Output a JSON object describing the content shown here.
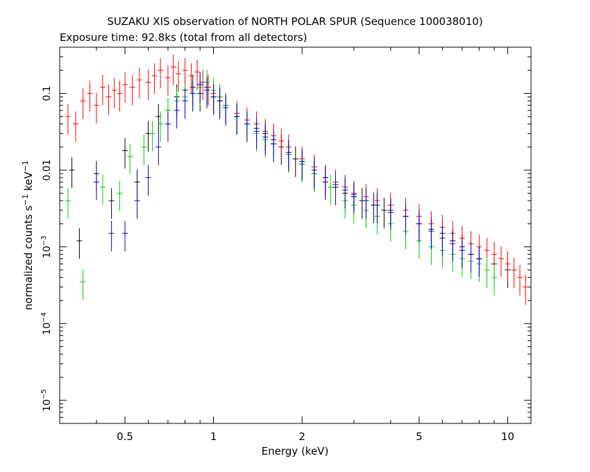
{
  "chart_data": {
    "type": "scatter",
    "title": "SUZAKU XIS observation of NORTH POLAR SPUR (Sequence 100038010)",
    "subtitle": "Exposure time: 92.8ks (total from all detectors)",
    "xlabel": "Energy (keV)",
    "ylabel_main": "normalized counts s",
    "ylabel_sup1": "−1",
    "ylabel_mid": " keV",
    "ylabel_sup2": "−1",
    "x_scale": "log",
    "y_scale": "log",
    "xlim": [
      0.3,
      12
    ],
    "ylim": [
      5e-06,
      0.4
    ],
    "x_ticks": [
      {
        "value": 0.5,
        "label": "0.5"
      },
      {
        "value": 1,
        "label": "1"
      },
      {
        "value": 2,
        "label": "2"
      },
      {
        "value": 5,
        "label": "5"
      },
      {
        "value": 10,
        "label": "10"
      }
    ],
    "y_ticks": [
      {
        "value": 0.1,
        "label": "0.1",
        "exp": ""
      },
      {
        "value": 0.01,
        "label": "0.01",
        "exp": ""
      },
      {
        "value": 0.001,
        "label": "10",
        "exp": "−3"
      },
      {
        "value": 0.0001,
        "label": "10",
        "exp": "−4"
      },
      {
        "value": 1e-05,
        "label": "10",
        "exp": "−5"
      }
    ],
    "grid": false,
    "legend": "none",
    "series": [
      {
        "color": "#000000",
        "points": [
          [
            0.33,
            0.01
          ],
          [
            0.35,
            0.0012
          ],
          [
            0.4,
            0.009
          ],
          [
            0.45,
            0.004
          ],
          [
            0.5,
            0.018
          ],
          [
            0.55,
            0.007
          ],
          [
            0.6,
            0.03
          ],
          [
            0.65,
            0.05
          ],
          [
            0.7,
            0.06
          ],
          [
            0.75,
            0.09
          ],
          [
            0.8,
            0.11
          ],
          [
            0.85,
            0.12
          ],
          [
            0.9,
            0.1
          ],
          [
            0.95,
            0.12
          ],
          [
            1.0,
            0.09
          ],
          [
            1.05,
            0.08
          ],
          [
            1.1,
            0.07
          ],
          [
            1.2,
            0.05
          ],
          [
            1.3,
            0.04
          ],
          [
            1.4,
            0.035
          ],
          [
            1.5,
            0.03
          ],
          [
            1.6,
            0.025
          ],
          [
            1.7,
            0.02
          ],
          [
            1.8,
            0.016
          ],
          [
            1.9,
            0.014
          ],
          [
            2.0,
            0.012
          ],
          [
            2.2,
            0.009
          ],
          [
            2.4,
            0.007
          ],
          [
            2.6,
            0.006
          ],
          [
            2.8,
            0.005
          ],
          [
            3.0,
            0.0045
          ],
          [
            3.2,
            0.004
          ],
          [
            3.5,
            0.0035
          ],
          [
            3.8,
            0.003
          ],
          [
            4.0,
            0.0028
          ],
          [
            4.5,
            0.0025
          ],
          [
            5.0,
            0.002
          ],
          [
            5.5,
            0.0017
          ],
          [
            6.0,
            0.0015
          ],
          [
            6.5,
            0.0012
          ],
          [
            7.0,
            0.001
          ],
          [
            7.5,
            0.0008
          ],
          [
            8.0,
            0.0007
          ],
          [
            9.0,
            0.0006
          ],
          [
            10.0,
            0.0005
          ]
        ]
      },
      {
        "color": "#ff0000",
        "points": [
          [
            0.32,
            0.05
          ],
          [
            0.34,
            0.04
          ],
          [
            0.36,
            0.08
          ],
          [
            0.38,
            0.1
          ],
          [
            0.4,
            0.07
          ],
          [
            0.42,
            0.12
          ],
          [
            0.44,
            0.09
          ],
          [
            0.46,
            0.11
          ],
          [
            0.48,
            0.1
          ],
          [
            0.5,
            0.13
          ],
          [
            0.53,
            0.12
          ],
          [
            0.56,
            0.15
          ],
          [
            0.6,
            0.14
          ],
          [
            0.63,
            0.17
          ],
          [
            0.66,
            0.2
          ],
          [
            0.7,
            0.16
          ],
          [
            0.73,
            0.22
          ],
          [
            0.76,
            0.18
          ],
          [
            0.8,
            0.2
          ],
          [
            0.84,
            0.17
          ],
          [
            0.88,
            0.19
          ],
          [
            0.92,
            0.14
          ],
          [
            0.96,
            0.12
          ],
          [
            1.0,
            0.1
          ],
          [
            1.05,
            0.09
          ],
          [
            1.1,
            0.07
          ],
          [
            1.2,
            0.055
          ],
          [
            1.3,
            0.045
          ],
          [
            1.4,
            0.04
          ],
          [
            1.5,
            0.032
          ],
          [
            1.6,
            0.028
          ],
          [
            1.7,
            0.024
          ],
          [
            1.8,
            0.02
          ],
          [
            2.0,
            0.014
          ],
          [
            2.2,
            0.011
          ],
          [
            2.4,
            0.008
          ],
          [
            2.6,
            0.007
          ],
          [
            2.8,
            0.006
          ],
          [
            3.0,
            0.005
          ],
          [
            3.3,
            0.0045
          ],
          [
            3.6,
            0.004
          ],
          [
            4.0,
            0.0035
          ],
          [
            4.5,
            0.003
          ],
          [
            5.0,
            0.0025
          ],
          [
            5.5,
            0.002
          ],
          [
            6.0,
            0.0018
          ],
          [
            6.5,
            0.0015
          ],
          [
            7.0,
            0.0013
          ],
          [
            7.5,
            0.0011
          ],
          [
            8.0,
            0.001
          ],
          [
            8.5,
            0.0009
          ],
          [
            9.0,
            0.0008
          ],
          [
            9.5,
            0.0007
          ],
          [
            10.0,
            0.0006
          ],
          [
            10.5,
            0.0005
          ],
          [
            11.0,
            0.0004
          ],
          [
            11.5,
            0.0003
          ]
        ]
      },
      {
        "color": "#00cc00",
        "points": [
          [
            0.32,
            0.004
          ],
          [
            0.36,
            0.00035
          ],
          [
            0.42,
            0.006
          ],
          [
            0.48,
            0.005
          ],
          [
            0.52,
            0.015
          ],
          [
            0.58,
            0.02
          ],
          [
            0.62,
            0.03
          ],
          [
            0.66,
            0.04
          ],
          [
            0.7,
            0.06
          ],
          [
            0.75,
            0.08
          ],
          [
            0.8,
            0.09
          ],
          [
            0.85,
            0.1
          ],
          [
            0.9,
            0.12
          ],
          [
            0.95,
            0.14
          ],
          [
            1.0,
            0.11
          ],
          [
            1.05,
            0.09
          ],
          [
            1.1,
            0.07
          ],
          [
            1.2,
            0.05
          ],
          [
            1.3,
            0.04
          ],
          [
            1.4,
            0.03
          ],
          [
            1.5,
            0.025
          ],
          [
            1.6,
            0.022
          ],
          [
            1.8,
            0.016
          ],
          [
            2.0,
            0.012
          ],
          [
            2.2,
            0.009
          ],
          [
            2.5,
            0.006
          ],
          [
            2.8,
            0.004
          ],
          [
            3.0,
            0.0035
          ],
          [
            3.3,
            0.003
          ],
          [
            3.6,
            0.0025
          ],
          [
            4.0,
            0.002
          ],
          [
            4.5,
            0.0016
          ],
          [
            5.0,
            0.0012
          ],
          [
            5.5,
            0.001
          ],
          [
            6.0,
            0.0009
          ],
          [
            6.5,
            0.0008
          ],
          [
            7.0,
            0.0007
          ],
          [
            7.5,
            0.00065
          ],
          [
            8.0,
            0.0006
          ],
          [
            8.5,
            0.0005
          ],
          [
            9.0,
            0.0004
          ]
        ]
      },
      {
        "color": "#0000cc",
        "points": [
          [
            0.4,
            0.007
          ],
          [
            0.45,
            0.0015
          ],
          [
            0.5,
            0.0015
          ],
          [
            0.55,
            0.004
          ],
          [
            0.6,
            0.008
          ],
          [
            0.65,
            0.02
          ],
          [
            0.7,
            0.04
          ],
          [
            0.75,
            0.06
          ],
          [
            0.8,
            0.08
          ],
          [
            0.85,
            0.1
          ],
          [
            0.9,
            0.13
          ],
          [
            0.95,
            0.11
          ],
          [
            1.0,
            0.09
          ],
          [
            1.05,
            0.08
          ],
          [
            1.1,
            0.065
          ],
          [
            1.2,
            0.05
          ],
          [
            1.3,
            0.04
          ],
          [
            1.4,
            0.032
          ],
          [
            1.5,
            0.027
          ],
          [
            1.6,
            0.022
          ],
          [
            1.8,
            0.017
          ],
          [
            2.0,
            0.013
          ],
          [
            2.2,
            0.01
          ],
          [
            2.4,
            0.008
          ],
          [
            2.6,
            0.0065
          ],
          [
            2.8,
            0.0055
          ],
          [
            3.0,
            0.0048
          ],
          [
            3.3,
            0.004
          ],
          [
            3.6,
            0.0035
          ],
          [
            4.0,
            0.003
          ],
          [
            4.5,
            0.0025
          ],
          [
            5.0,
            0.002
          ],
          [
            5.5,
            0.0016
          ],
          [
            6.0,
            0.0013
          ],
          [
            6.5,
            0.0011
          ],
          [
            7.0,
            0.0009
          ],
          [
            7.5,
            0.0008
          ],
          [
            8.0,
            0.0007
          ]
        ]
      }
    ]
  }
}
